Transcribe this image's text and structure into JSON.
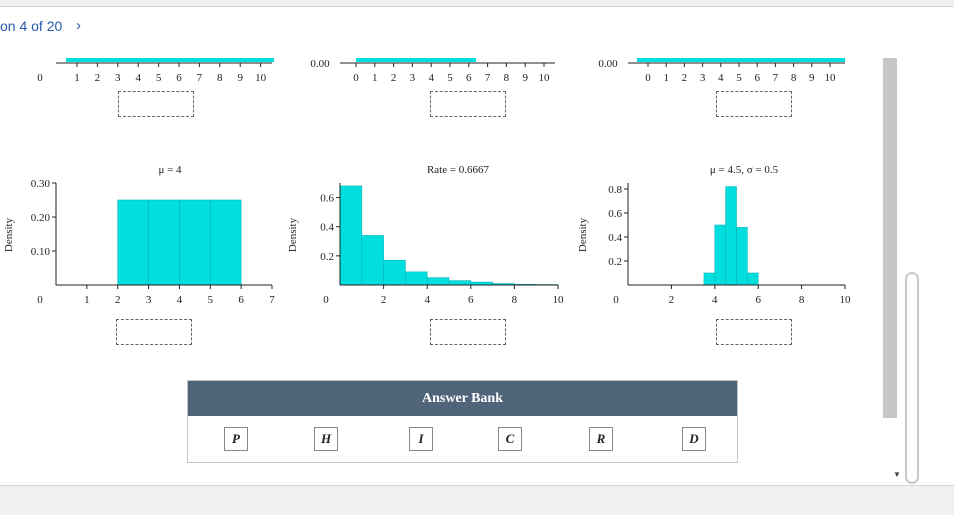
{
  "nav": {
    "question_label": "on 4 of 20",
    "next_icon": "›"
  },
  "top_row": {
    "left_zero": "0",
    "left_ticks": [
      "1",
      "2",
      "3",
      "4",
      "5",
      "6",
      "7",
      "8",
      "9",
      "10"
    ],
    "mid_zero_label": "0.00",
    "mid_ticks": [
      "0",
      "1",
      "2",
      "3",
      "4",
      "5",
      "6",
      "7",
      "8",
      "9",
      "10"
    ],
    "right_zero_label": "0.00",
    "right_ticks": [
      "0",
      "1",
      "2",
      "3",
      "4",
      "5",
      "6",
      "7",
      "8",
      "9",
      "10"
    ]
  },
  "chart_data": [
    {
      "type": "bar",
      "title": "μ = 4",
      "ylabel": "Density",
      "xlabel": "",
      "categories": [
        "2",
        "3",
        "4",
        "5"
      ],
      "bins": [
        [
          2,
          3
        ],
        [
          3,
          4
        ],
        [
          4,
          5
        ],
        [
          5,
          6
        ]
      ],
      "values": [
        0.25,
        0.25,
        0.25,
        0.25
      ],
      "xlim": [
        0,
        7
      ],
      "ylim": [
        0,
        0.3
      ],
      "x_ticks": [
        "1",
        "2",
        "3",
        "4",
        "5",
        "6",
        "7"
      ],
      "y_ticks": [
        "0.10",
        "0.20",
        "0.30"
      ],
      "y_zero_label": "0",
      "color": "#00dede"
    },
    {
      "type": "bar",
      "title": "Rate = 0.6667",
      "ylabel": "Density",
      "xlabel": "",
      "categories": [
        "0-1",
        "1-2",
        "2-3",
        "3-4",
        "4-5",
        "5-6",
        "6-7",
        "7-8",
        "8-9",
        "9-10"
      ],
      "bins": [
        [
          0,
          1
        ],
        [
          1,
          2
        ],
        [
          2,
          3
        ],
        [
          3,
          4
        ],
        [
          4,
          5
        ],
        [
          5,
          6
        ],
        [
          6,
          7
        ],
        [
          7,
          8
        ],
        [
          8,
          9
        ],
        [
          9,
          10
        ]
      ],
      "values": [
        0.68,
        0.34,
        0.17,
        0.09,
        0.05,
        0.03,
        0.02,
        0.01,
        0.005,
        0.003
      ],
      "xlim": [
        0,
        10
      ],
      "ylim": [
        0,
        0.7
      ],
      "x_ticks": [
        "2",
        "4",
        "6",
        "8",
        "10"
      ],
      "y_ticks": [
        "0.2",
        "0.4",
        "0.6"
      ],
      "y_zero_label": "0",
      "color": "#00dede"
    },
    {
      "type": "bar",
      "title": "μ = 4.5, σ = 0.5",
      "ylabel": "Density",
      "xlabel": "",
      "categories": [
        "3.5",
        "4",
        "4.5",
        "5",
        "5.5"
      ],
      "bins": [
        [
          3.5,
          4
        ],
        [
          4,
          4.5
        ],
        [
          4.5,
          5
        ],
        [
          5,
          5.5
        ],
        [
          5.5,
          6
        ]
      ],
      "values": [
        0.1,
        0.5,
        0.82,
        0.48,
        0.1
      ],
      "xlim": [
        0,
        10
      ],
      "ylim": [
        0,
        0.85
      ],
      "x_ticks": [
        "2",
        "4",
        "6",
        "8",
        "10"
      ],
      "y_ticks": [
        "0.2",
        "0.4",
        "0.6",
        "0.8"
      ],
      "y_zero_label": "0",
      "color": "#00dede"
    }
  ],
  "answer_bank": {
    "title": "Answer Bank",
    "tiles": [
      "P",
      "H",
      "I",
      "C",
      "R",
      "D"
    ]
  }
}
